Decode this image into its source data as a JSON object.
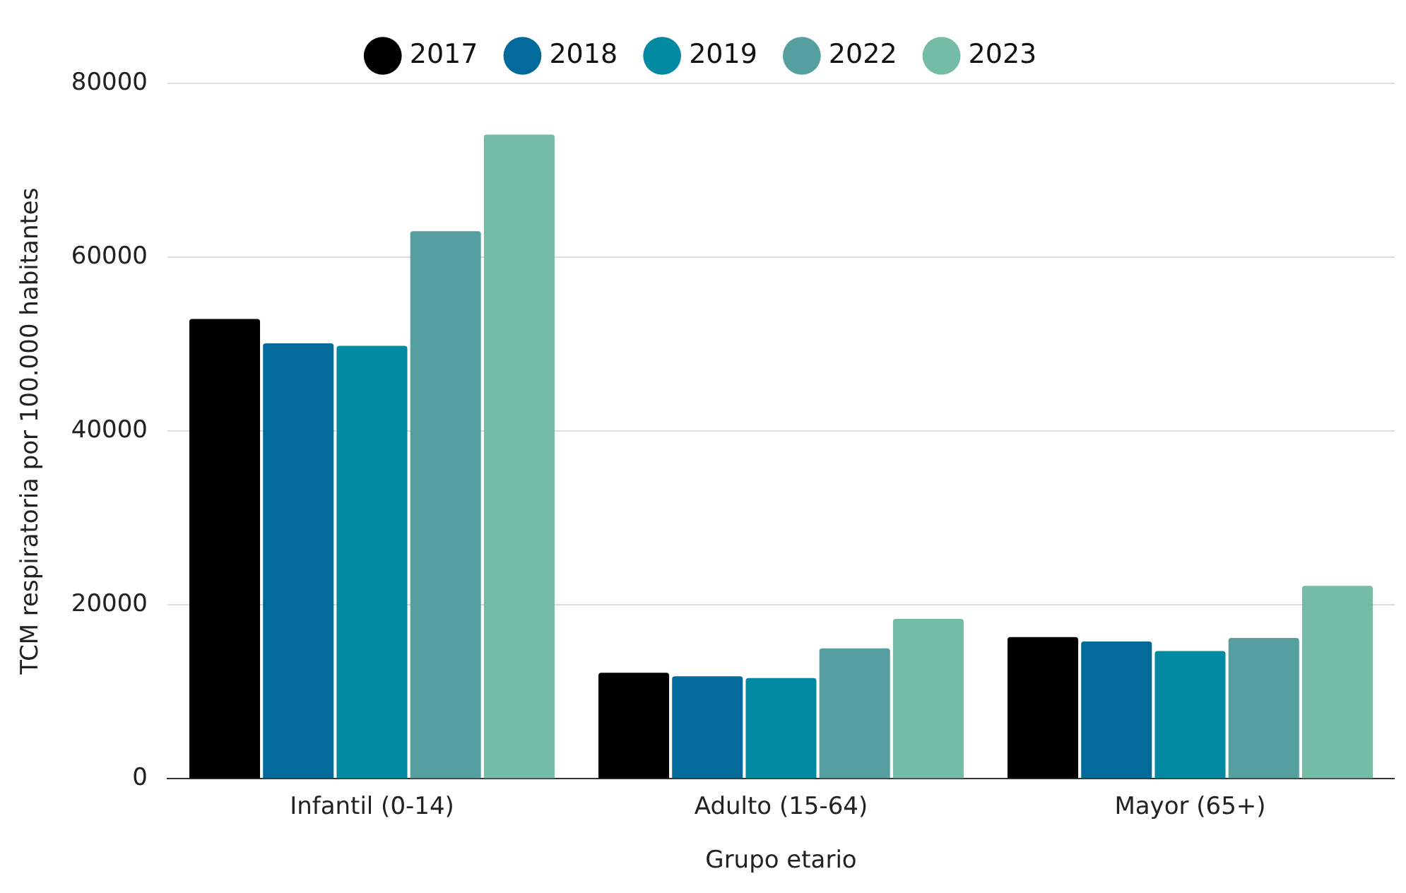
{
  "chart_data": {
    "type": "bar",
    "xlabel": "Grupo etario",
    "ylabel": "TCM respiratoria por 100.000 habitantes",
    "categories": [
      "Infantil (0-14)",
      "Adulto (15-64)",
      "Mayor (65+)"
    ],
    "series": [
      {
        "name": "2017",
        "color": "#000000",
        "values": [
          52900,
          12200,
          16300
        ]
      },
      {
        "name": "2018",
        "color": "#026b9b",
        "values": [
          50100,
          11800,
          15800
        ]
      },
      {
        "name": "2019",
        "color": "#028aa3",
        "values": [
          49800,
          11600,
          14700
        ]
      },
      {
        "name": "2022",
        "color": "#559fa0",
        "values": [
          63000,
          15000,
          16200
        ]
      },
      {
        "name": "2023",
        "color": "#74bca6",
        "values": [
          74100,
          18400,
          22200
        ]
      }
    ],
    "ylim": [
      0,
      80000
    ],
    "yticks": [
      0,
      20000,
      40000,
      60000,
      80000
    ],
    "grid": "y",
    "legend": "top"
  }
}
